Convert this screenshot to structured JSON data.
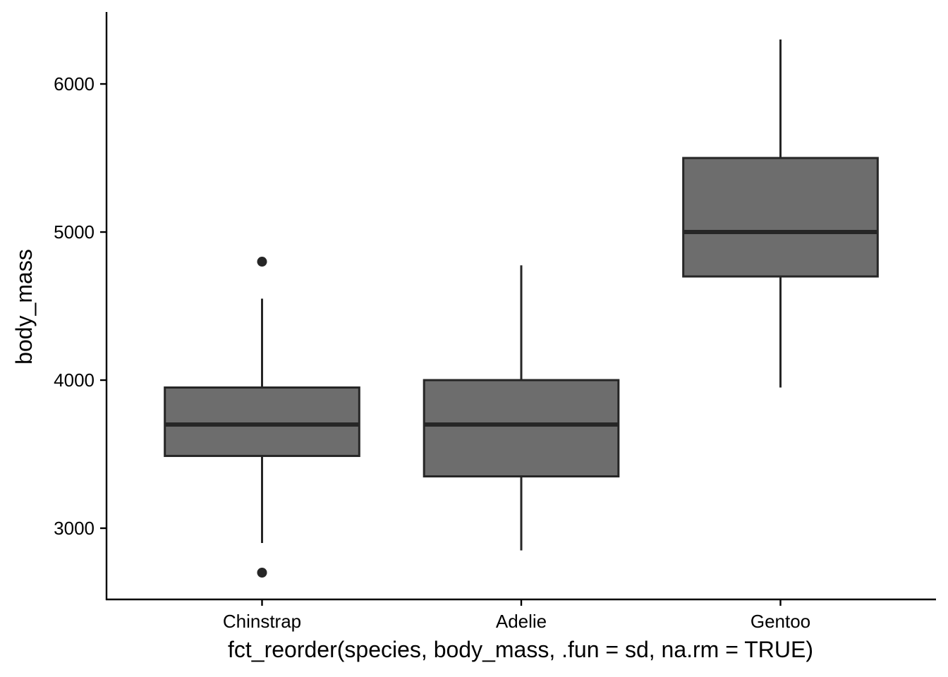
{
  "chart_data": {
    "type": "boxplot",
    "title": "",
    "xlabel": "fct_reorder(species, body_mass, .fun = sd, na.rm = TRUE)",
    "ylabel": "body_mass",
    "ylim": [
      2519,
      6486
    ],
    "yticks": [
      3000,
      4000,
      5000,
      6000
    ],
    "ytick_labels": [
      "3000",
      "4000",
      "5000",
      "6000"
    ],
    "grid": false,
    "legend": null,
    "categories": [
      "Chinstrap",
      "Adelie",
      "Gentoo"
    ],
    "boxes": [
      {
        "category": "Chinstrap",
        "whisker_low": 2900,
        "q1": 3488,
        "median": 3700,
        "q3": 3950,
        "whisker_high": 4550,
        "outliers": [
          2700,
          4800
        ]
      },
      {
        "category": "Adelie",
        "whisker_low": 2850,
        "q1": 3350,
        "median": 3700,
        "q3": 4000,
        "whisker_high": 4775,
        "outliers": []
      },
      {
        "category": "Gentoo",
        "whisker_low": 3950,
        "q1": 4700,
        "median": 5000,
        "q3": 5500,
        "whisker_high": 6300,
        "outliers": []
      }
    ],
    "colors": {
      "box_fill": "#6d6d6d",
      "box_line": "#262626",
      "axis": "#000000"
    }
  }
}
